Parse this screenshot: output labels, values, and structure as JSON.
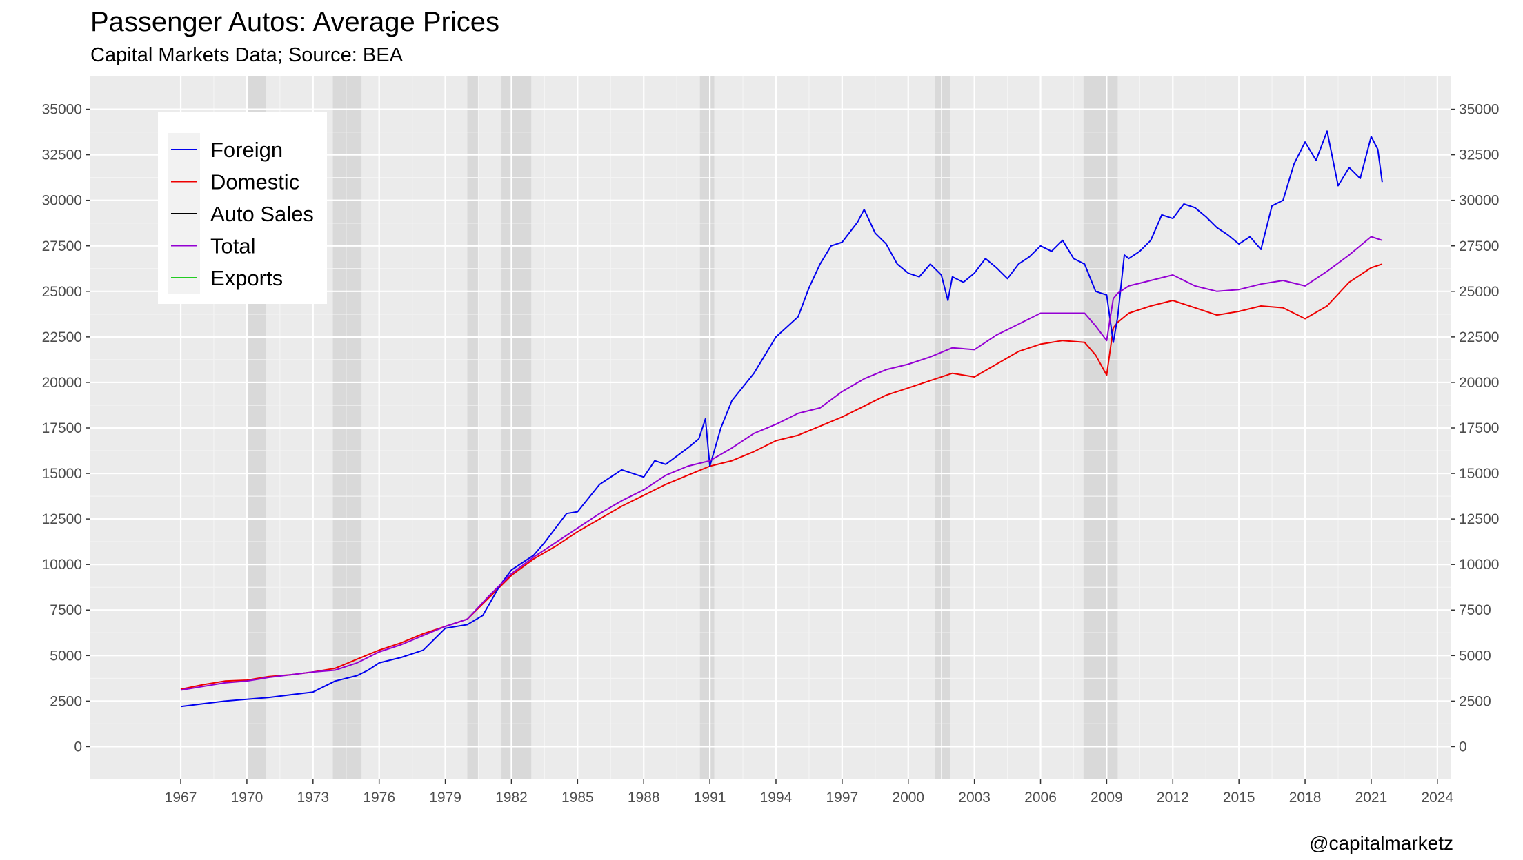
{
  "chart_data": {
    "type": "line",
    "title": "Passenger Autos: Average Prices",
    "subtitle": "Capital Markets Data; Source: BEA",
    "caption": "@capitalmarketz",
    "xlabel": "",
    "ylabel": "",
    "xlim": [
      1962.9,
      2024.6
    ],
    "ylim": [
      -1800,
      36800
    ],
    "x_ticks": [
      1967,
      1970,
      1973,
      1976,
      1979,
      1982,
      1985,
      1988,
      1991,
      1994,
      1997,
      2000,
      2003,
      2006,
      2009,
      2012,
      2015,
      2018,
      2021,
      2024
    ],
    "y_ticks": [
      0,
      2500,
      5000,
      7500,
      10000,
      12500,
      15000,
      17500,
      20000,
      22500,
      25000,
      27500,
      30000,
      32500,
      35000
    ],
    "grid": true,
    "legend_position": "top-left",
    "recessions": [
      [
        1969.95,
        1970.85
      ],
      [
        1973.9,
        1975.2
      ],
      [
        1980.0,
        1980.5
      ],
      [
        1981.55,
        1982.9
      ],
      [
        1990.55,
        1991.2
      ],
      [
        2001.2,
        2001.9
      ],
      [
        2007.95,
        2009.5
      ]
    ],
    "series": [
      {
        "name": "Foreign",
        "color": "#0000ee",
        "x": [
          1967,
          1968,
          1969,
          1970,
          1971,
          1972,
          1973,
          1974,
          1975,
          1975.5,
          1976,
          1977,
          1978,
          1979,
          1980,
          1980.7,
          1981.5,
          1982,
          1982.5,
          1983,
          1983.5,
          1984,
          1984.5,
          1985,
          1986,
          1987,
          1988,
          1988.5,
          1989,
          1990,
          1990.5,
          1990.8,
          1991,
          1991.5,
          1992,
          1993,
          1994,
          1995,
          1995.5,
          1996,
          1996.5,
          1997,
          1997.7,
          1998,
          1998.5,
          1999,
          1999.5,
          2000,
          2000.5,
          2001,
          2001.5,
          2001.8,
          2002,
          2002.5,
          2003,
          2003.5,
          2004,
          2004.5,
          2005,
          2005.5,
          2006,
          2006.5,
          2007,
          2007.5,
          2008,
          2008.5,
          2009,
          2009.3,
          2009.5,
          2009.8,
          2010,
          2010.5,
          2011,
          2011.5,
          2012,
          2012.5,
          2013,
          2013.5,
          2014,
          2014.5,
          2015,
          2015.5,
          2016,
          2016.5,
          2017,
          2017.5,
          2018,
          2018.5,
          2019,
          2019.5,
          2020,
          2020.5,
          2021,
          2021.3,
          2021.5
        ],
        "y": [
          2200,
          2350,
          2500,
          2600,
          2700,
          2850,
          3000,
          3600,
          3900,
          4200,
          4600,
          4900,
          5300,
          6500,
          6700,
          7200,
          8900,
          9700,
          10100,
          10500,
          11200,
          12000,
          12800,
          12900,
          14400,
          15200,
          14800,
          15700,
          15500,
          16400,
          16900,
          18000,
          15400,
          17500,
          19000,
          20500,
          22500,
          23600,
          25200,
          26500,
          27500,
          27700,
          28800,
          29500,
          28200,
          27600,
          26500,
          26000,
          25800,
          26500,
          25900,
          24500,
          25800,
          25500,
          26000,
          26800,
          26300,
          25700,
          26500,
          26900,
          27500,
          27200,
          27800,
          26800,
          26500,
          25000,
          24800,
          22200,
          23600,
          27000,
          26800,
          27200,
          27800,
          29200,
          29000,
          29800,
          29600,
          29100,
          28500,
          28100,
          27600,
          28000,
          27300,
          29700,
          30000,
          32000,
          33200,
          32200,
          33800,
          30800,
          31800,
          31200,
          33500,
          32800,
          31000
        ]
      },
      {
        "name": "Domestic",
        "color": "#ee0000",
        "x": [
          1967,
          1968,
          1969,
          1970,
          1971,
          1972,
          1973,
          1974,
          1975,
          1976,
          1977,
          1978,
          1979,
          1980,
          1981,
          1982,
          1983,
          1984,
          1985,
          1986,
          1987,
          1988,
          1989,
          1990,
          1991,
          1992,
          1993,
          1994,
          1995,
          1996,
          1997,
          1998,
          1999,
          2000,
          2001,
          2002,
          2003,
          2004,
          2005,
          2006,
          2007,
          2008,
          2008.5,
          2009,
          2009.3,
          2009.5,
          2010,
          2011,
          2012,
          2013,
          2014,
          2015,
          2016,
          2017,
          2018,
          2019,
          2020,
          2021,
          2021.5
        ],
        "y": [
          3150,
          3400,
          3600,
          3650,
          3850,
          3950,
          4100,
          4300,
          4800,
          5300,
          5700,
          6200,
          6600,
          7000,
          8200,
          9400,
          10300,
          11000,
          11800,
          12500,
          13200,
          13800,
          14400,
          14900,
          15400,
          15700,
          16200,
          16800,
          17100,
          17600,
          18100,
          18700,
          19300,
          19700,
          20100,
          20500,
          20300,
          21000,
          21700,
          22100,
          22300,
          22200,
          21500,
          20400,
          23000,
          23300,
          23800,
          24200,
          24500,
          24100,
          23700,
          23900,
          24200,
          24100,
          23500,
          24200,
          25500,
          26300,
          26500
        ]
      },
      {
        "name": "Total",
        "color": "#9400d3",
        "x": [
          1967,
          1968,
          1969,
          1970,
          1971,
          1972,
          1973,
          1974,
          1975,
          1976,
          1977,
          1978,
          1979,
          1980,
          1981,
          1982,
          1983,
          1984,
          1985,
          1986,
          1987,
          1988,
          1989,
          1990,
          1991,
          1992,
          1993,
          1994,
          1995,
          1996,
          1997,
          1998,
          1999,
          2000,
          2001,
          2002,
          2003,
          2004,
          2005,
          2006,
          2007,
          2008,
          2008.5,
          2009,
          2009.3,
          2009.5,
          2010,
          2011,
          2012,
          2013,
          2014,
          2015,
          2016,
          2017,
          2018,
          2019,
          2020,
          2021,
          2021.5
        ],
        "y": [
          3100,
          3300,
          3500,
          3600,
          3800,
          3950,
          4100,
          4200,
          4600,
          5200,
          5600,
          6100,
          6600,
          7000,
          8300,
          9500,
          10400,
          11200,
          12000,
          12800,
          13500,
          14100,
          14900,
          15400,
          15700,
          16400,
          17200,
          17700,
          18300,
          18600,
          19500,
          20200,
          20700,
          21000,
          21400,
          21900,
          21800,
          22600,
          23200,
          23800,
          23800,
          23800,
          23100,
          22300,
          24600,
          24900,
          25300,
          25600,
          25900,
          25300,
          25000,
          25100,
          25400,
          25600,
          25300,
          26100,
          27000,
          28000,
          27800
        ]
      },
      {
        "name": "Auto Sales",
        "color": "#000000",
        "x": [],
        "y": []
      },
      {
        "name": "Exports",
        "color": "#22cc22",
        "x": [],
        "y": []
      }
    ]
  },
  "legend": [
    {
      "label": "Foreign",
      "color": "#0000ee"
    },
    {
      "label": "Domestic",
      "color": "#ee0000"
    },
    {
      "label": "Auto Sales",
      "color": "#000000"
    },
    {
      "label": "Total",
      "color": "#9400d3"
    },
    {
      "label": "Exports",
      "color": "#22cc22"
    }
  ]
}
